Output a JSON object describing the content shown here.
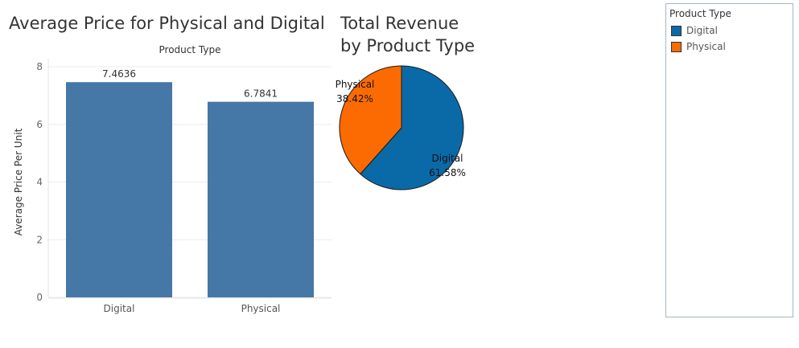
{
  "bar_title": "Average Price for Physical and Digital",
  "pie_title_line1": "Total Revenue",
  "pie_title_line2": "by Product Type",
  "legend": {
    "title": "Product Type",
    "items": [
      {
        "label": "Digital",
        "color": "#0a6aa8"
      },
      {
        "label": "Physical",
        "color": "#fb6b02"
      }
    ]
  },
  "chart_data": [
    {
      "type": "bar",
      "title": "Average Price for Physical and Digital",
      "header_label": "Product Type",
      "xlabel": "",
      "ylabel": "Average Price Per Unit",
      "categories": [
        "Digital",
        "Physical"
      ],
      "values": [
        7.4636,
        6.7841
      ],
      "value_labels": [
        "7.4636",
        "6.7841"
      ],
      "yticks": [
        0,
        2,
        4,
        6,
        8
      ],
      "ylim": [
        0,
        8
      ],
      "bar_color": "#4577a7",
      "grid": true
    },
    {
      "type": "pie",
      "title": "Total Revenue by Product Type",
      "slices": [
        {
          "label": "Digital",
          "value": 61.58,
          "pct_label": "61.58%",
          "color": "#0a6aa8"
        },
        {
          "label": "Physical",
          "value": 38.42,
          "pct_label": "38.42%",
          "color": "#fb6b02"
        }
      ]
    }
  ]
}
